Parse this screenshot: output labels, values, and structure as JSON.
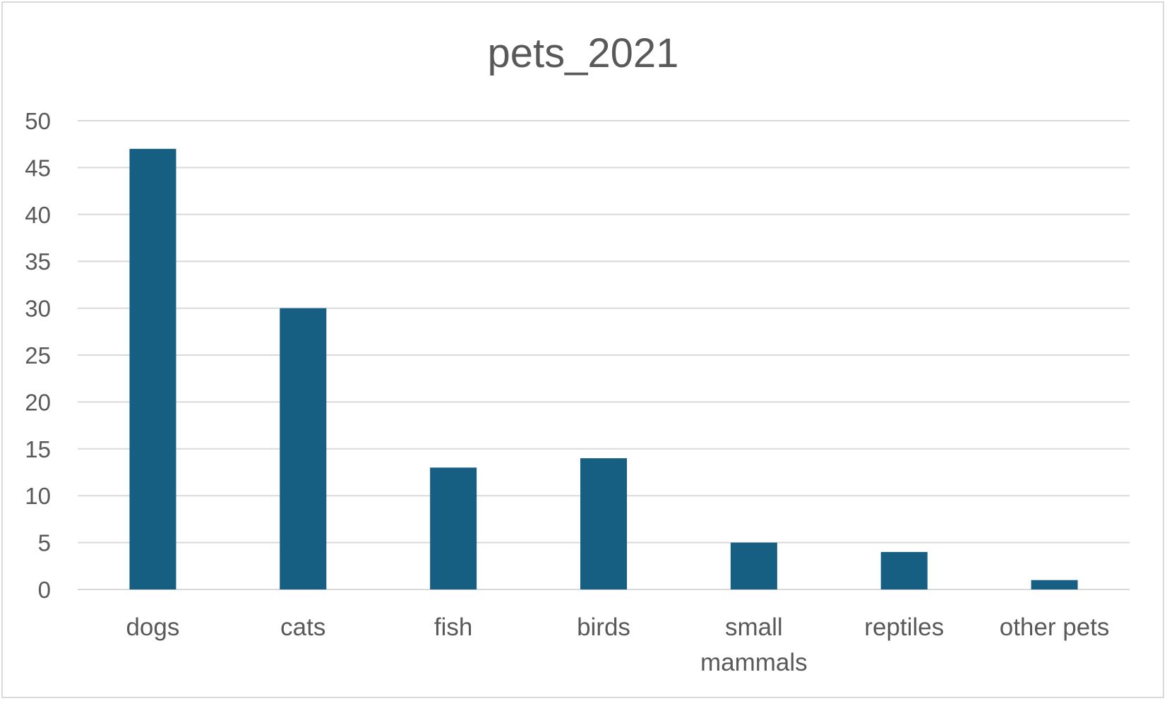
{
  "chart_data": {
    "type": "bar",
    "title": "pets_2021",
    "xlabel": "",
    "ylabel": "",
    "categories": [
      "dogs",
      "cats",
      "fish",
      "birds",
      "small mammals",
      "reptiles",
      "other pets"
    ],
    "values": [
      47,
      30,
      13,
      14,
      5,
      4,
      1
    ],
    "ylim": [
      0,
      50
    ],
    "yticks": [
      "0",
      "5",
      "10",
      "15",
      "20",
      "25",
      "30",
      "35",
      "40",
      "45",
      "50"
    ],
    "grid": true,
    "legend": "none",
    "bar_color": "#175f82"
  }
}
